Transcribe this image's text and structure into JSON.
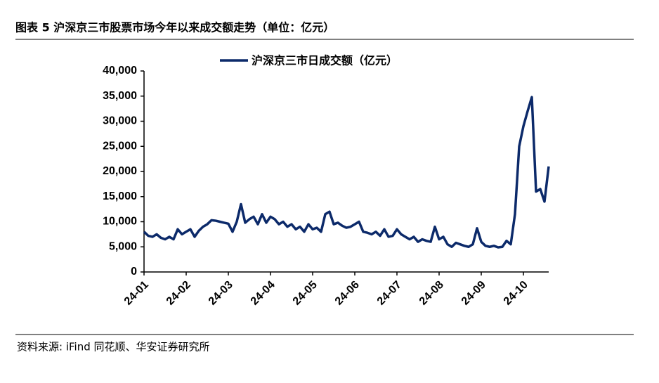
{
  "chart_data": {
    "type": "line",
    "title": "图表 5 沪深京三市股票市场今年以来成交额走势（单位：亿元）",
    "source": "资料来源: iFind 同花顺、华安证券研究所",
    "categories": [
      "24-01",
      null,
      null,
      null,
      null,
      null,
      null,
      null,
      null,
      null,
      "24-02",
      null,
      null,
      null,
      null,
      null,
      null,
      null,
      null,
      null,
      "24-03",
      null,
      null,
      null,
      null,
      null,
      null,
      null,
      null,
      null,
      "24-04",
      null,
      null,
      null,
      null,
      null,
      null,
      null,
      null,
      null,
      "24-05",
      null,
      null,
      null,
      null,
      null,
      null,
      null,
      null,
      null,
      "24-06",
      null,
      null,
      null,
      null,
      null,
      null,
      null,
      null,
      null,
      "24-07",
      null,
      null,
      null,
      null,
      null,
      null,
      null,
      null,
      null,
      "24-08",
      null,
      null,
      null,
      null,
      null,
      null,
      null,
      null,
      null,
      "24-09",
      null,
      null,
      null,
      null,
      null,
      null,
      null,
      null,
      null,
      "24-10",
      null,
      null,
      null,
      null,
      null,
      null
    ],
    "series": [
      {
        "name": "沪深京三市日成交额（亿元）",
        "color": "#0c2a6a",
        "values": [
          8000,
          7200,
          7000,
          7500,
          6800,
          6500,
          7000,
          6500,
          8500,
          7500,
          8000,
          8500,
          7000,
          8200,
          9000,
          9500,
          10300,
          10200,
          10000,
          9800,
          9600,
          8000,
          10000,
          13500,
          9800,
          10500,
          11000,
          9500,
          11500,
          9800,
          11000,
          10500,
          9500,
          10000,
          9000,
          9500,
          8500,
          9000,
          8000,
          9500,
          8500,
          8800,
          8000,
          11500,
          12000,
          9500,
          9800,
          9200,
          8800,
          9000,
          9500,
          10000,
          8000,
          7800,
          7500,
          8000,
          7200,
          8500,
          7000,
          7200,
          8500,
          7500,
          7000,
          6500,
          7000,
          6000,
          6500,
          6200,
          6000,
          9000,
          6500,
          7000,
          5500,
          5000,
          5800,
          5500,
          5200,
          5000,
          5500,
          8700,
          6000,
          5200,
          5000,
          5200,
          4900,
          5000,
          6200,
          5500,
          11500,
          25000,
          29000,
          32000,
          34800,
          16000,
          16500,
          14000,
          21000
        ]
      }
    ],
    "ylim": [
      0,
      40000
    ],
    "yticks": [
      0,
      {
        "value": 5000,
        "label": "5,000"
      },
      {
        "value": 10000,
        "label": "10,000"
      },
      {
        "value": 15000,
        "label": "15,000"
      },
      {
        "value": 20000,
        "label": "20,000"
      },
      {
        "value": 25000,
        "label": "25,000"
      },
      {
        "value": 30000,
        "label": "30,000"
      },
      {
        "value": 35000,
        "label": "35,000"
      },
      {
        "value": 40000,
        "label": "40,000"
      }
    ],
    "legend": "top"
  }
}
